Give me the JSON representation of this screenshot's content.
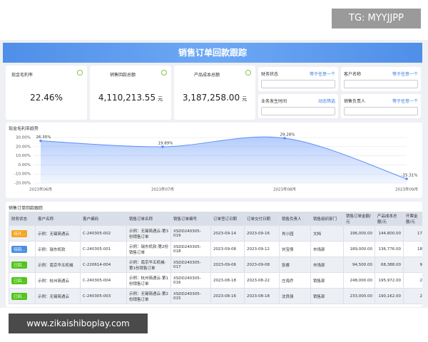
{
  "watermark_top": "TG: MYYJJPP",
  "watermark_bottom": "www.zikaishiboplay.com",
  "header": {
    "title": "销售订单回款跟踪"
  },
  "kpis": [
    {
      "label": "现金毛利率",
      "value": "22.46%"
    },
    {
      "label": "销售回款总额",
      "value": "4,110,213.55",
      "unit": "元"
    },
    {
      "label": "产品成本总额",
      "value": "3,187,258.00",
      "unit": "元"
    }
  ],
  "filters": [
    {
      "label": "财务状态",
      "mode": "等于任意一个"
    },
    {
      "label": "客户名称",
      "mode": "等于任意一个"
    },
    {
      "label": "业务发生时间",
      "mode": "动态筛选"
    },
    {
      "label": "销售负责人",
      "mode": "等于任意一个"
    }
  ],
  "chart_data": {
    "type": "area",
    "title": "现金毛利率趋势",
    "categories": [
      "2023年06月",
      "2023年07月",
      "2023年08月",
      "2023年09月"
    ],
    "values": [
      26.35,
      19.89,
      29.28,
      -15.31
    ],
    "value_labels": [
      "26.35%",
      "19.89%",
      "29.28%",
      "-15.31%"
    ],
    "color": "#5b8ff9",
    "ylim": [
      -20,
      30
    ],
    "yticks": [
      {
        "value": 30,
        "label": "30.00%"
      },
      {
        "value": 20,
        "label": "20.00%"
      },
      {
        "value": 10,
        "label": "10.00%"
      },
      {
        "value": 0,
        "label": "0.00%"
      },
      {
        "value": -10,
        "label": "-10.00%"
      },
      {
        "value": -20,
        "label": "-20.00%"
      }
    ],
    "grid": true
  },
  "table": {
    "title": "销售订单回款跟踪",
    "columns": [
      "财务状态",
      "客户名称",
      "客户编码",
      "销售订单名称",
      "销售订单编号",
      "订单签订日期",
      "订单交付日期",
      "销售负责人",
      "销售组织部门",
      "销售订单金额/元",
      "产品成本总额/元",
      "开票金额/元"
    ],
    "status_colors": [
      "#f5a623",
      "#4a90e2",
      "#52c41a",
      "#52c41a",
      "#52c41a"
    ],
    "rows": [
      [
        "待开...",
        "示例：无锡简遇云",
        "C-240305-002",
        "示例：无锡简遇云-第3份销售订单",
        "XSDD240305-019",
        "2023-09-14",
        "2023-09-16",
        "肖小园",
        "文档",
        "196,000.00",
        "144,800.00",
        "17"
      ],
      [
        "待回...",
        "示例：瑞东机软",
        "C-240305-001",
        "示例：瑞东机软-第2份销售订单",
        "XSDD240305-018",
        "2023-09-08",
        "2023-09-12",
        "刘宝倩",
        "市场部",
        "189,000.00",
        "136,776.00",
        "18"
      ],
      [
        "已回...",
        "示例：南京华五机械",
        "C-220614-004",
        "示例：南京华五机械-第1份销售订单",
        "XSDD240305-017",
        "2023-09-06",
        "2023-09-08",
        "张睿",
        "市场部",
        "94,500.00",
        "68,388.00",
        "9"
      ],
      [
        "已回...",
        "示例：杭州简遇云",
        "C-240305-004",
        "示例：杭州简遇云-第1份销售订单",
        "XSDD240305-016",
        "2023-08-18",
        "2023-08-22",
        "庄海乔",
        "销售部",
        "248,000.00",
        "195,972.00",
        "2"
      ],
      [
        "已回...",
        "示例：无锡简遇云",
        "C-240305-003",
        "示例：无锡简遇云-第2份销售订单",
        "XSDD240305-015",
        "2023-08-16",
        "2023-08-18",
        "沈良强",
        "销售部",
        "233,000.00",
        "190,162.00",
        "2"
      ]
    ]
  }
}
